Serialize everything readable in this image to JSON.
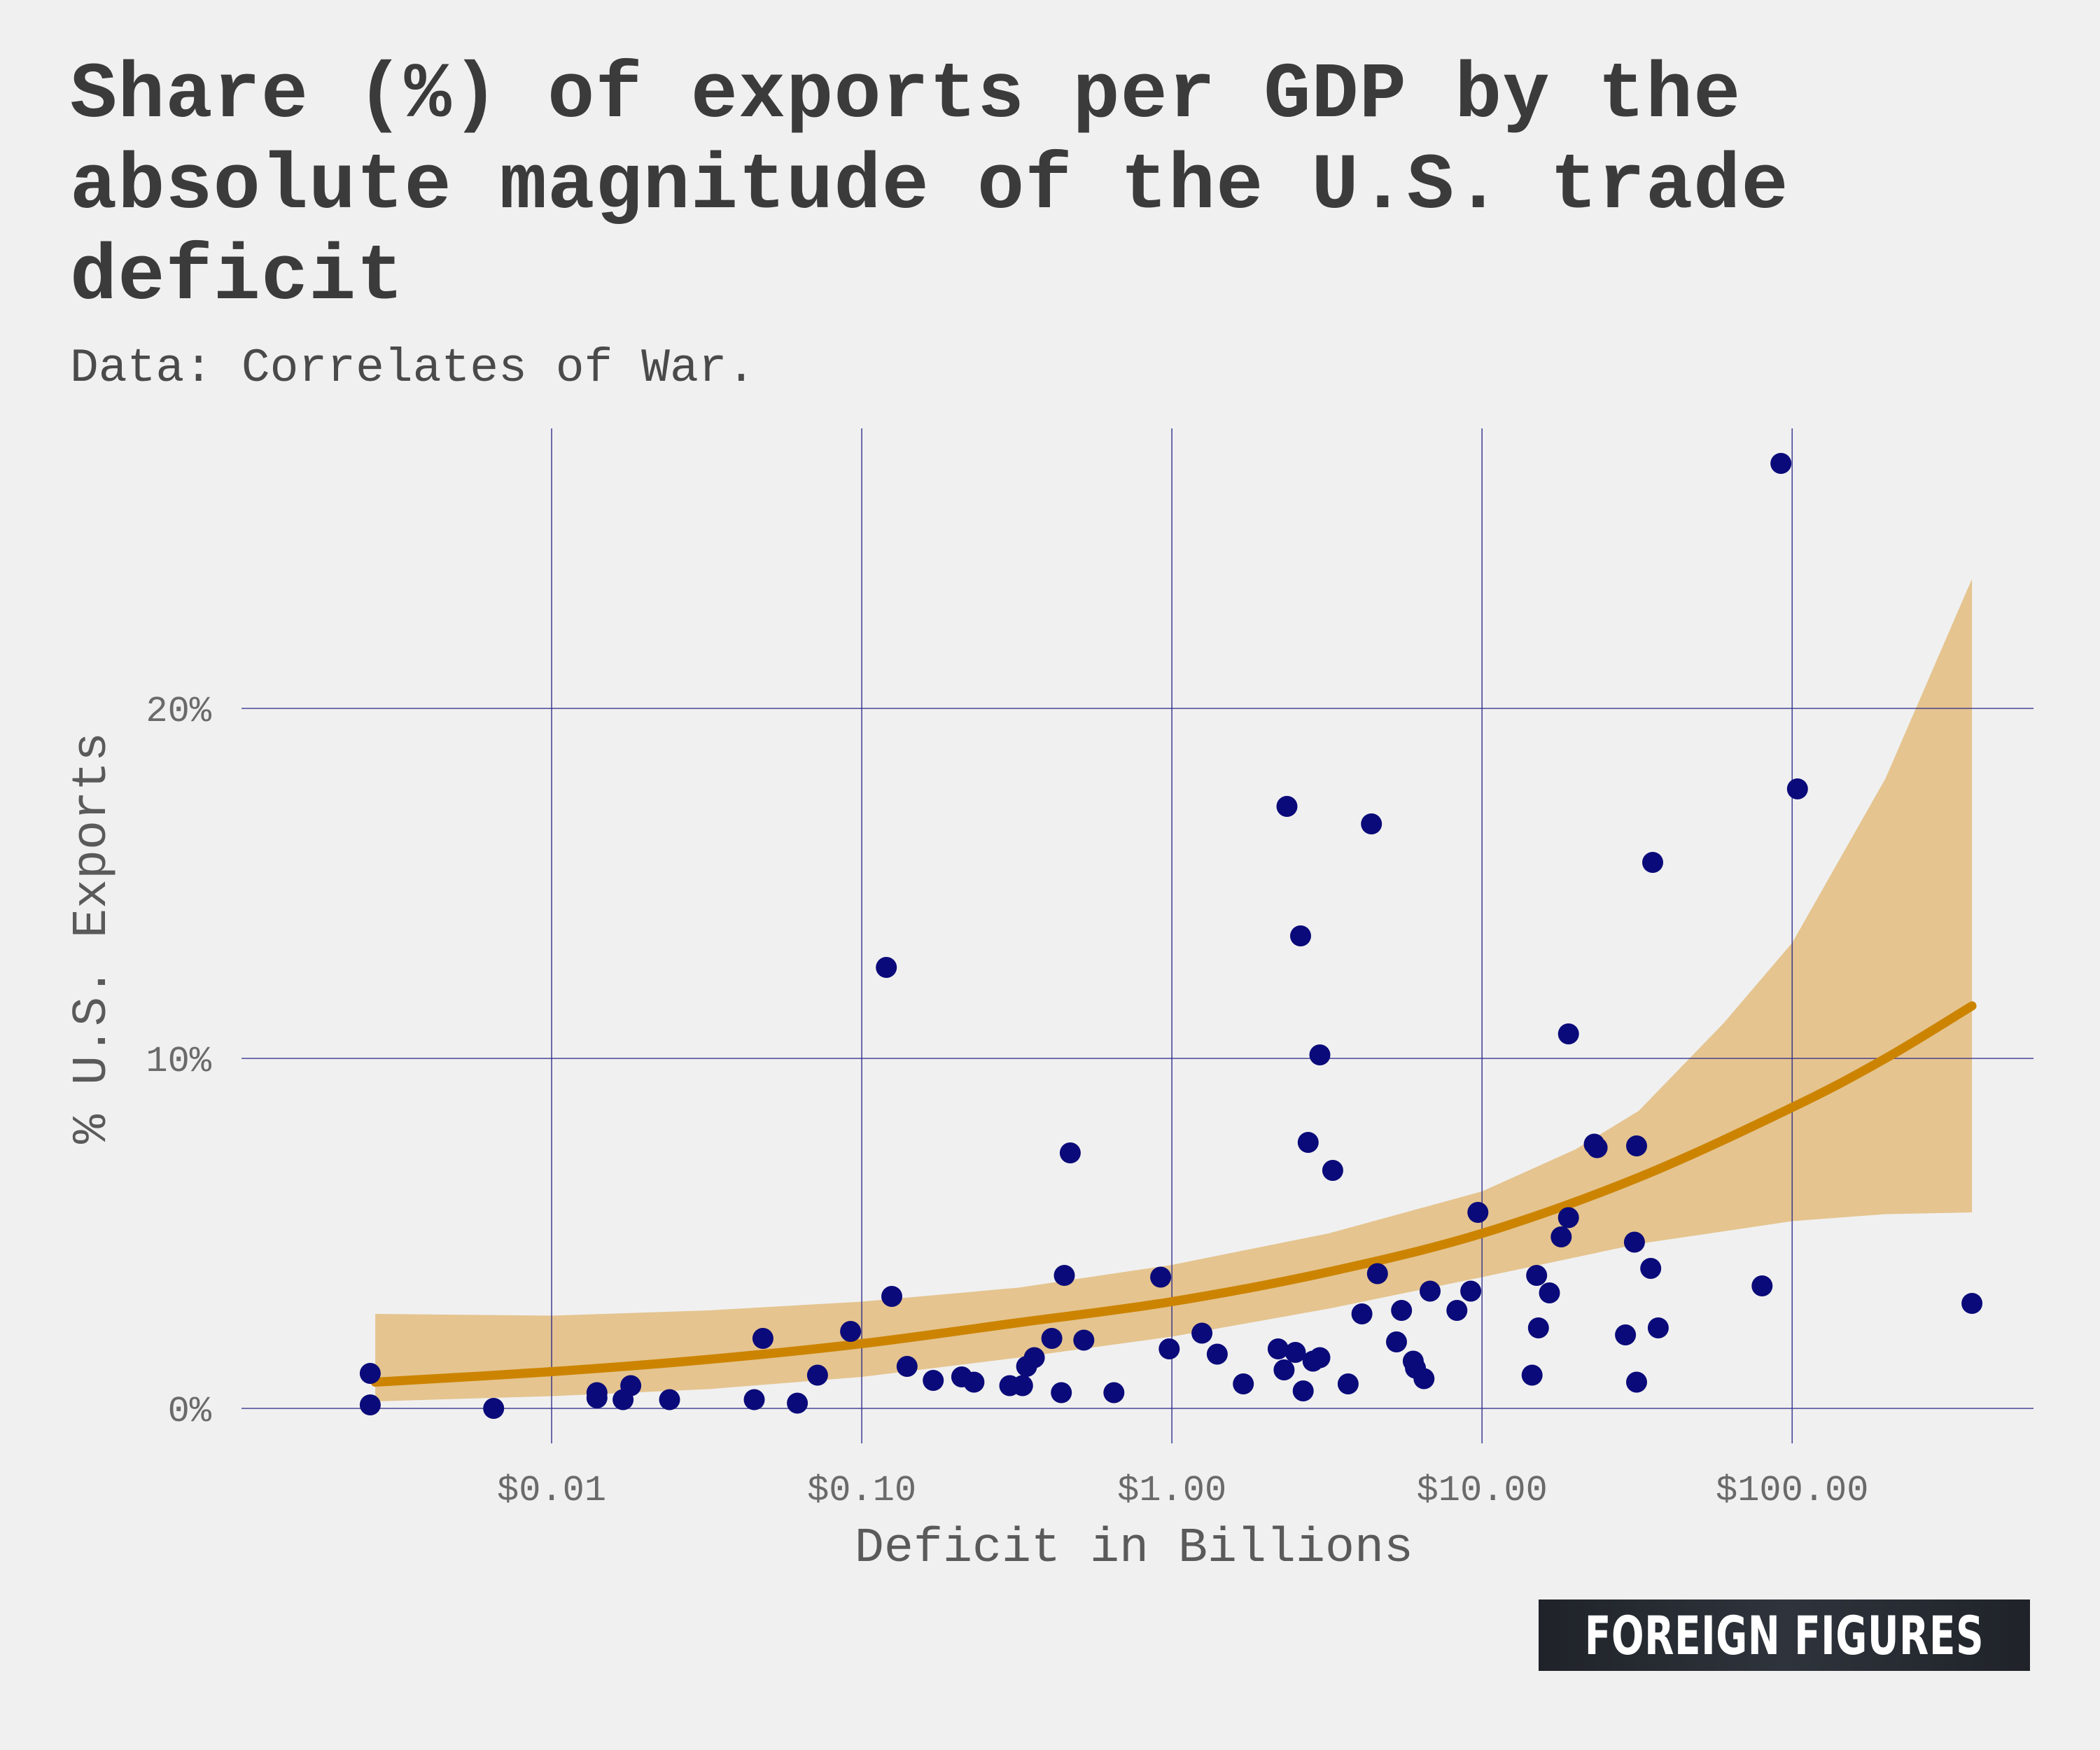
{
  "chart_data": {
    "type": "scatter",
    "title": "Share (%) of exports per GDP by the absolute magnitude of the U.S. trade deficit",
    "subtitle": "Data: Correlates of War.",
    "xlabel": "Deficit in Billions",
    "ylabel": "% U.S. Exports",
    "x_scale": "log10",
    "xlim": [
      0.001,
      600
    ],
    "ylim": [
      -1,
      28
    ],
    "x_ticks": [
      {
        "value": 0.01,
        "label": "$0.01"
      },
      {
        "value": 0.1,
        "label": "$0.10"
      },
      {
        "value": 1,
        "label": "$1.00"
      },
      {
        "value": 10,
        "label": "$10.00"
      },
      {
        "value": 100,
        "label": "$100.00"
      }
    ],
    "y_ticks": [
      {
        "value": 0,
        "label": "0%"
      },
      {
        "value": 10,
        "label": "10%"
      },
      {
        "value": 20,
        "label": "20%"
      }
    ],
    "grid": true,
    "point_color": "#0a0a7a",
    "trend_color": "#cc8400",
    "band_color": "#e5c48f",
    "grid_color": "#2a2a8a",
    "points": [
      {
        "x": 0.0026,
        "y": 1.0
      },
      {
        "x": 0.0026,
        "y": 0.1
      },
      {
        "x": 0.0065,
        "y": 0.0
      },
      {
        "x": 0.014,
        "y": 0.3
      },
      {
        "x": 0.014,
        "y": 0.45
      },
      {
        "x": 0.017,
        "y": 0.25
      },
      {
        "x": 0.018,
        "y": 0.65
      },
      {
        "x": 0.024,
        "y": 0.25
      },
      {
        "x": 0.045,
        "y": 0.25
      },
      {
        "x": 0.048,
        "y": 2.0
      },
      {
        "x": 0.062,
        "y": 0.15
      },
      {
        "x": 0.072,
        "y": 0.95
      },
      {
        "x": 0.092,
        "y": 2.2
      },
      {
        "x": 0.12,
        "y": 12.6
      },
      {
        "x": 0.125,
        "y": 3.2
      },
      {
        "x": 0.14,
        "y": 1.2
      },
      {
        "x": 0.17,
        "y": 0.8
      },
      {
        "x": 0.21,
        "y": 0.9
      },
      {
        "x": 0.23,
        "y": 0.75
      },
      {
        "x": 0.3,
        "y": 0.65
      },
      {
        "x": 0.33,
        "y": 0.65
      },
      {
        "x": 0.34,
        "y": 1.2
      },
      {
        "x": 0.36,
        "y": 1.45
      },
      {
        "x": 0.41,
        "y": 2.0
      },
      {
        "x": 0.44,
        "y": 0.45
      },
      {
        "x": 0.45,
        "y": 3.8
      },
      {
        "x": 0.47,
        "y": 7.3
      },
      {
        "x": 0.52,
        "y": 1.95
      },
      {
        "x": 0.65,
        "y": 0.45
      },
      {
        "x": 0.92,
        "y": 3.75
      },
      {
        "x": 0.98,
        "y": 1.7
      },
      {
        "x": 1.25,
        "y": 2.15
      },
      {
        "x": 1.4,
        "y": 1.55
      },
      {
        "x": 1.7,
        "y": 0.7
      },
      {
        "x": 2.2,
        "y": 1.7
      },
      {
        "x": 2.3,
        "y": 1.1
      },
      {
        "x": 2.35,
        "y": 17.2
      },
      {
        "x": 2.5,
        "y": 1.6
      },
      {
        "x": 2.6,
        "y": 13.5
      },
      {
        "x": 2.65,
        "y": 0.5
      },
      {
        "x": 2.75,
        "y": 7.6
      },
      {
        "x": 2.85,
        "y": 1.35
      },
      {
        "x": 3.0,
        "y": 10.1
      },
      {
        "x": 3.0,
        "y": 1.45
      },
      {
        "x": 3.3,
        "y": 6.8
      },
      {
        "x": 3.7,
        "y": 0.7
      },
      {
        "x": 4.1,
        "y": 2.7
      },
      {
        "x": 4.4,
        "y": 16.7
      },
      {
        "x": 4.6,
        "y": 3.85
      },
      {
        "x": 5.3,
        "y": 1.9
      },
      {
        "x": 5.5,
        "y": 2.8
      },
      {
        "x": 6.0,
        "y": 1.35
      },
      {
        "x": 6.1,
        "y": 1.15
      },
      {
        "x": 6.5,
        "y": 0.85
      },
      {
        "x": 6.8,
        "y": 3.35
      },
      {
        "x": 8.3,
        "y": 2.8
      },
      {
        "x": 9.2,
        "y": 3.35
      },
      {
        "x": 9.7,
        "y": 5.6
      },
      {
        "x": 14.5,
        "y": 0.95
      },
      {
        "x": 15.0,
        "y": 3.8
      },
      {
        "x": 15.2,
        "y": 2.3
      },
      {
        "x": 16.5,
        "y": 3.3
      },
      {
        "x": 18.0,
        "y": 4.9
      },
      {
        "x": 19.0,
        "y": 5.45
      },
      {
        "x": 19.0,
        "y": 10.7
      },
      {
        "x": 23.0,
        "y": 7.55
      },
      {
        "x": 23.5,
        "y": 7.45
      },
      {
        "x": 29.0,
        "y": 2.1
      },
      {
        "x": 31.0,
        "y": 4.75
      },
      {
        "x": 31.5,
        "y": 0.75
      },
      {
        "x": 31.5,
        "y": 7.5
      },
      {
        "x": 35.0,
        "y": 4.0
      },
      {
        "x": 35.5,
        "y": 15.6
      },
      {
        "x": 37.0,
        "y": 2.3
      },
      {
        "x": 80.0,
        "y": 3.5
      },
      {
        "x": 92.0,
        "y": 27.0
      },
      {
        "x": 104.0,
        "y": 17.7
      },
      {
        "x": 380.0,
        "y": 3.0
      }
    ],
    "trend": [
      {
        "x": 0.0027,
        "y": 0.75
      },
      {
        "x": 0.01,
        "y": 1.05
      },
      {
        "x": 0.032,
        "y": 1.4
      },
      {
        "x": 0.1,
        "y": 1.85
      },
      {
        "x": 0.32,
        "y": 2.45
      },
      {
        "x": 1.0,
        "y": 3.05
      },
      {
        "x": 3.2,
        "y": 3.9
      },
      {
        "x": 10.0,
        "y": 5.0
      },
      {
        "x": 32.0,
        "y": 6.6
      },
      {
        "x": 100.0,
        "y": 8.6
      },
      {
        "x": 200.0,
        "y": 10.0
      },
      {
        "x": 380.0,
        "y": 11.5
      }
    ],
    "band_upper": [
      {
        "x": 0.0027,
        "y": 2.7
      },
      {
        "x": 0.01,
        "y": 2.65
      },
      {
        "x": 0.032,
        "y": 2.8
      },
      {
        "x": 0.1,
        "y": 3.05
      },
      {
        "x": 0.32,
        "y": 3.45
      },
      {
        "x": 1.0,
        "y": 4.1
      },
      {
        "x": 3.2,
        "y": 5.0
      },
      {
        "x": 10.0,
        "y": 6.2
      },
      {
        "x": 20.0,
        "y": 7.4
      },
      {
        "x": 32.0,
        "y": 8.5
      },
      {
        "x": 60.0,
        "y": 11.0
      },
      {
        "x": 100.0,
        "y": 13.3
      },
      {
        "x": 200.0,
        "y": 18.0
      },
      {
        "x": 380.0,
        "y": 23.7
      }
    ],
    "band_lower": [
      {
        "x": 0.0027,
        "y": 0.2
      },
      {
        "x": 0.01,
        "y": 0.35
      },
      {
        "x": 0.032,
        "y": 0.55
      },
      {
        "x": 0.1,
        "y": 0.9
      },
      {
        "x": 0.32,
        "y": 1.45
      },
      {
        "x": 1.0,
        "y": 2.05
      },
      {
        "x": 3.2,
        "y": 2.85
      },
      {
        "x": 10.0,
        "y": 3.75
      },
      {
        "x": 32.0,
        "y": 4.7
      },
      {
        "x": 100.0,
        "y": 5.35
      },
      {
        "x": 200.0,
        "y": 5.55
      },
      {
        "x": 380.0,
        "y": 5.6
      }
    ]
  },
  "brand": {
    "text": "FOREIGN FIGURES"
  }
}
